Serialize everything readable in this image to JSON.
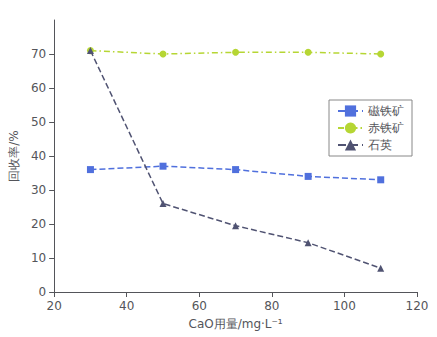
{
  "chart_data": {
    "type": "line",
    "x": [
      30,
      50,
      70,
      90,
      110
    ],
    "series": [
      {
        "name": "磁铁矿",
        "values": [
          36,
          37,
          36,
          34,
          33
        ],
        "marker": "square",
        "line_style": "dashed"
      },
      {
        "name": "赤铁矿",
        "values": [
          71,
          70,
          70.5,
          70.5,
          70
        ],
        "marker": "circle",
        "line_style": "dashdot"
      },
      {
        "name": "石英",
        "values": [
          71,
          26,
          19.5,
          14.5,
          7
        ],
        "marker": "triangle",
        "line_style": "dashed"
      }
    ],
    "xlabel": "CaO用量/mg·L⁻¹",
    "ylabel": "回收率/%",
    "xlim": [
      20,
      120
    ],
    "ylim": [
      0,
      80
    ],
    "xticks": [
      20,
      40,
      60,
      80,
      100,
      120
    ],
    "yticks": [
      0,
      10,
      20,
      30,
      40,
      50,
      60,
      70
    ],
    "grid": false,
    "legend": "right"
  }
}
